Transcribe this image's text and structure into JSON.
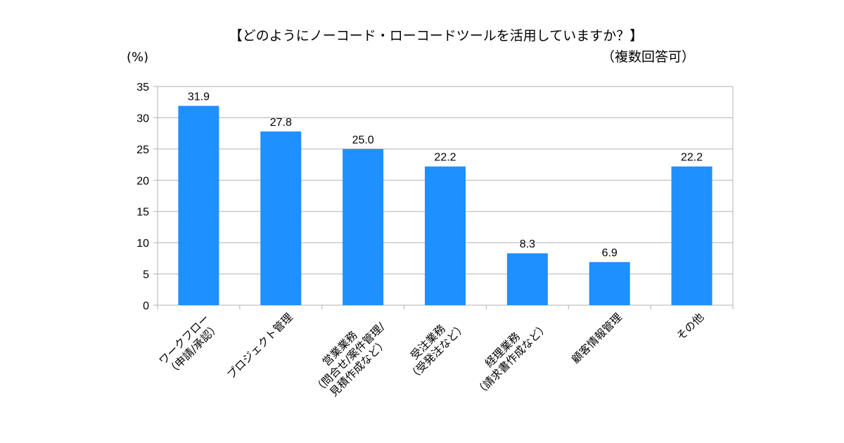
{
  "chart_data": {
    "type": "bar",
    "title": "【どのようにノーコード・ローコードツールを活用していますか？】",
    "subtitle": "（複数回答可）",
    "ylabel": "(%)",
    "xlabel": "",
    "categories": [
      [
        "ワークフロー",
        "（申請/承認）"
      ],
      [
        "プロジェクト管理"
      ],
      [
        "営業業務",
        "（問合せ/案件管理/",
        "見積作成など）"
      ],
      [
        "受注業務",
        "（受発注など）"
      ],
      [
        "経理業務",
        "（請求書作成など）"
      ],
      [
        "顧客情報管理"
      ],
      [
        "その他"
      ]
    ],
    "values": [
      31.9,
      27.8,
      25.0,
      22.2,
      8.3,
      6.9,
      22.2
    ],
    "data_labels": [
      "31.9",
      "27.8",
      "25.0",
      "22.2",
      "8.3",
      "6.9",
      "22.2"
    ],
    "ylim": [
      0,
      35
    ],
    "yticks": [
      0,
      5,
      10,
      15,
      20,
      25,
      30,
      35
    ],
    "grid": true,
    "legend": "none",
    "bar_color": "#1e90ff",
    "grid_color": "#b3b3b3"
  }
}
